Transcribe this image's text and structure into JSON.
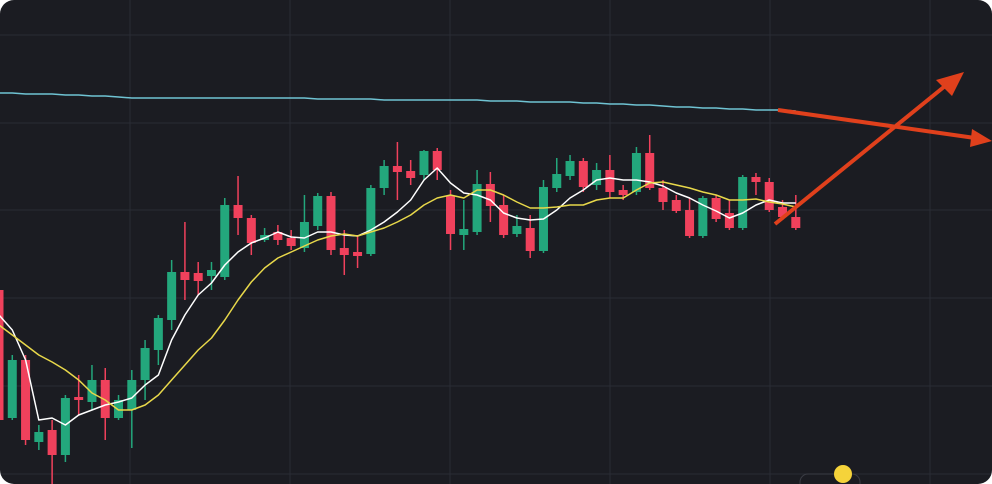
{
  "chart_data": {
    "type": "candlestick",
    "up_color": "#23a77c",
    "down_color": "#f0415c",
    "ylim": [
      0,
      484
    ],
    "yticks": [
      10,
      98,
      186,
      274,
      361,
      449
    ],
    "grid": true,
    "open": [
      194,
      66,
      124,
      42,
      54,
      29,
      87,
      82,
      104,
      66,
      74,
      104,
      134,
      164,
      212,
      211,
      208,
      207,
      279,
      266,
      244,
      252,
      246,
      236,
      258,
      288,
      236,
      232,
      230,
      296,
      318,
      313,
      309,
      333,
      288,
      249,
      252,
      300,
      279,
      250,
      256,
      233,
      296,
      308,
      323,
      299,
      314,
      294,
      292,
      331,
      296,
      284,
      274,
      248,
      286,
      271,
      256,
      307,
      302,
      277,
      267
    ],
    "high": [
      199,
      129,
      129,
      59,
      64,
      89,
      109,
      119,
      116,
      89,
      114,
      144,
      169,
      224,
      262,
      222,
      222,
      286,
      308,
      269,
      256,
      259,
      254,
      289,
      291,
      292,
      254,
      249,
      299,
      324,
      342,
      324,
      334,
      336,
      294,
      284,
      314,
      312,
      289,
      269,
      269,
      304,
      326,
      329,
      326,
      321,
      329,
      299,
      337,
      349,
      304,
      289,
      286,
      288,
      289,
      284,
      309,
      311,
      306,
      284,
      289
    ],
    "low": [
      44,
      64,
      39,
      34,
      0,
      22,
      69,
      74,
      44,
      64,
      36,
      84,
      119,
      154,
      184,
      189,
      194,
      204,
      249,
      229,
      242,
      239,
      234,
      232,
      254,
      229,
      209,
      216,
      228,
      289,
      284,
      299,
      304,
      304,
      234,
      234,
      249,
      262,
      246,
      247,
      226,
      231,
      292,
      304,
      292,
      294,
      286,
      284,
      289,
      294,
      274,
      271,
      246,
      246,
      262,
      254,
      254,
      289,
      272,
      264,
      254
    ],
    "close": [
      64,
      124,
      44,
      52,
      29,
      86,
      84,
      104,
      66,
      84,
      104,
      136,
      166,
      212,
      204,
      203,
      214,
      279,
      266,
      241,
      249,
      244,
      238,
      262,
      288,
      234,
      229,
      228,
      296,
      318,
      312,
      306,
      333,
      314,
      250,
      255,
      300,
      278,
      249,
      258,
      233,
      297,
      310,
      323,
      297,
      314,
      292,
      289,
      331,
      296,
      282,
      273,
      248,
      286,
      265,
      256,
      307,
      302,
      274,
      267,
      256
    ],
    "series": [
      {
        "color": "#ffffff",
        "values": [
          169,
          154,
          124,
          64,
          66,
          59,
          69,
          74,
          79,
          82,
          86,
          99,
          109,
          144,
          169,
          189,
          201,
          219,
          232,
          241,
          246,
          252,
          247,
          246,
          252,
          252,
          249,
          248,
          254,
          262,
          272,
          284,
          304,
          316,
          301,
          291,
          289,
          284,
          271,
          266,
          264,
          265,
          274,
          286,
          294,
          304,
          306,
          304,
          304,
          302,
          298,
          291,
          286,
          279,
          273,
          266,
          271,
          279,
          284,
          281,
          281
        ]
      },
      {
        "color": "#e8d84a",
        "values": [
          159,
          149,
          139,
          129,
          122,
          114,
          104,
          91,
          84,
          74,
          74,
          79,
          89,
          104,
          119,
          134,
          146,
          164,
          184,
          202,
          216,
          226,
          232,
          238,
          244,
          248,
          250,
          248,
          252,
          256,
          262,
          269,
          279,
          286,
          289,
          286,
          294,
          294,
          289,
          282,
          276,
          276,
          277,
          279,
          279,
          284,
          286,
          286,
          294,
          301,
          302,
          299,
          296,
          292,
          289,
          284,
          284,
          285,
          282,
          280,
          277
        ]
      },
      {
        "color": "#6fc3d3",
        "values": [
          391,
          391,
          390,
          390,
          390,
          389,
          389,
          388,
          388,
          387,
          386,
          386,
          386,
          386,
          386,
          386,
          386,
          386,
          386,
          386,
          386,
          386,
          386,
          386,
          385,
          385,
          385,
          385,
          385,
          384,
          384,
          384,
          384,
          384,
          384,
          384,
          384,
          383,
          383,
          383,
          382,
          382,
          382,
          382,
          381,
          381,
          380,
          380,
          379,
          379,
          378,
          377,
          377,
          376,
          376,
          375,
          375,
          374,
          374,
          374,
          373
        ]
      }
    ]
  }
}
